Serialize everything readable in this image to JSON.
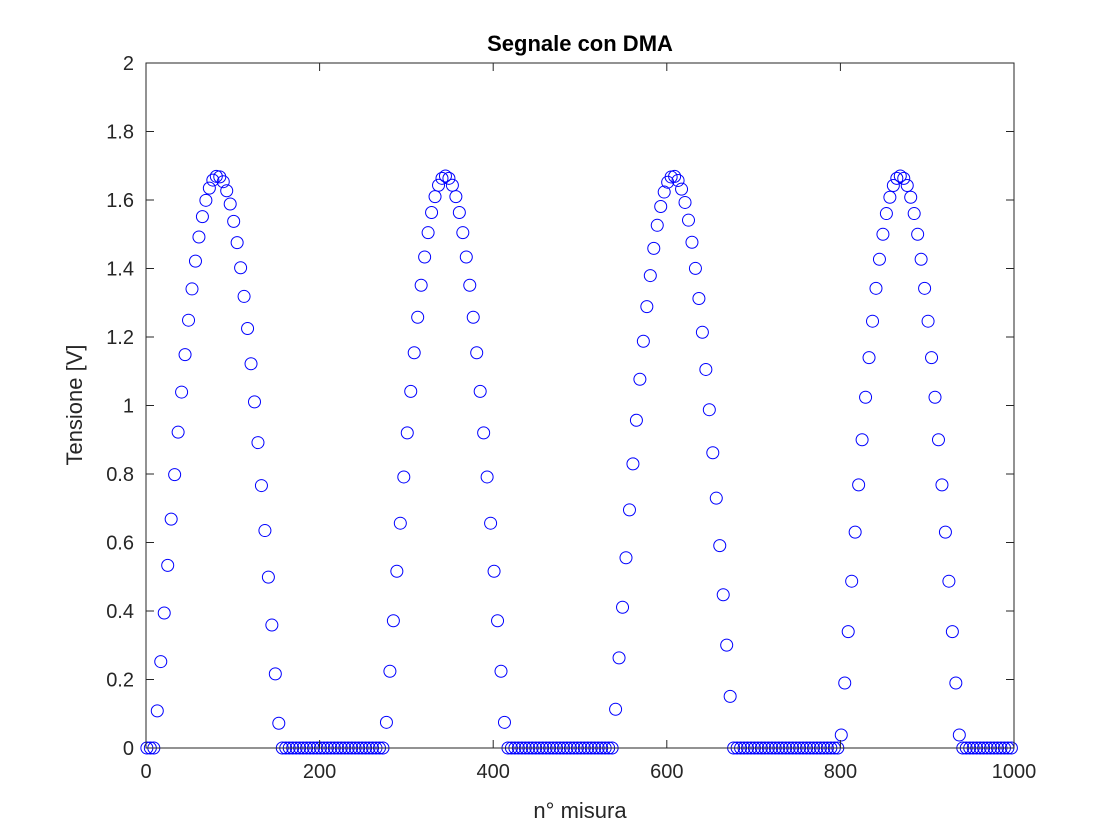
{
  "chart_data": {
    "type": "scatter",
    "title": "Segnale con DMA",
    "xlabel": "n° misura",
    "ylabel": "Tensione [V]",
    "xlim": [
      0,
      1000
    ],
    "ylim": [
      0,
      2
    ],
    "xticks": [
      0,
      200,
      400,
      600,
      800,
      1000
    ],
    "xtick_labels": [
      "0",
      "200",
      "400",
      "600",
      "800",
      "1000"
    ],
    "yticks": [
      0,
      0.2,
      0.4,
      0.6,
      0.8,
      1,
      1.2,
      1.4,
      1.6,
      1.8,
      2
    ],
    "ytick_labels": [
      "0",
      "0.2",
      "0.4",
      "0.6",
      "0.8",
      "1",
      "1.2",
      "1.4",
      "1.6",
      "1.8",
      "2"
    ],
    "grid": false,
    "marker": "open-circle",
    "marker_color": "#0000ff",
    "series": [
      {
        "description_free": true,
        "x_start": 1,
        "x_end": 1000,
        "x_step": 4,
        "pulses": [
          {
            "start": 10,
            "end": 155,
            "peak": 1.67
          },
          {
            "start": 275,
            "end": 415,
            "peak": 1.67
          },
          {
            "start": 538,
            "end": 677,
            "peak": 1.67
          },
          {
            "start": 800,
            "end": 938,
            "peak": 1.67
          }
        ],
        "baseline": 0
      }
    ]
  }
}
